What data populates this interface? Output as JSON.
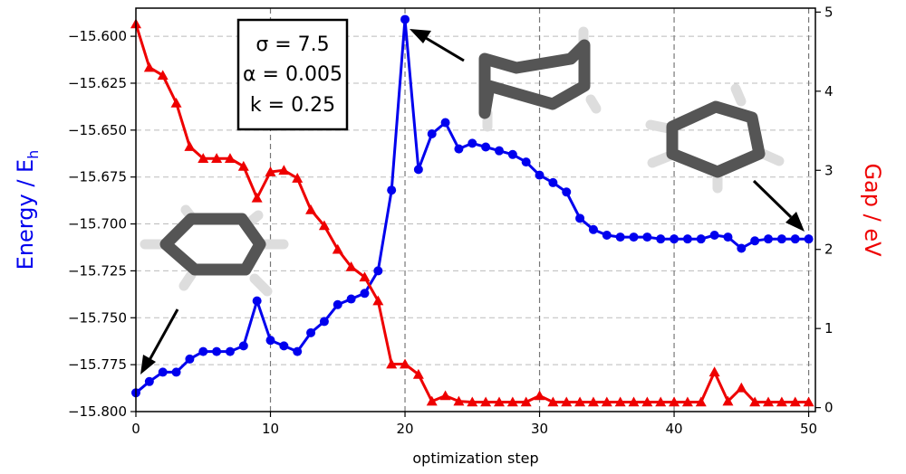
{
  "chart_data": {
    "type": "line",
    "xlabel": "optimization step",
    "ylabel_left": "Energy / E",
    "ylabel_left_sub": "h",
    "ylabel_right": "Gap / eV",
    "xlim": [
      0,
      50.5
    ],
    "ylim_left": [
      -15.8,
      -15.585
    ],
    "ylim_right": [
      -0.05,
      5.05
    ],
    "x_ticks": [
      0,
      10,
      20,
      30,
      40,
      50
    ],
    "x_tick_labels": [
      "0",
      "10",
      "20",
      "30",
      "40",
      "50"
    ],
    "y_left_ticks": [
      -15.6,
      -15.625,
      -15.65,
      -15.675,
      -15.7,
      -15.725,
      -15.75,
      -15.775,
      -15.8
    ],
    "y_left_tick_labels": [
      "−15.600",
      "−15.625",
      "−15.650",
      "−15.675",
      "−15.700",
      "−15.725",
      "−15.750",
      "−15.775",
      "−15.800"
    ],
    "y_right_ticks": [
      0,
      1,
      2,
      3,
      4,
      5
    ],
    "y_right_tick_labels": [
      "0",
      "1",
      "2",
      "3",
      "4",
      "5"
    ],
    "grid": true,
    "vertical_dashed_lines_at": [
      10,
      20,
      30,
      40,
      50
    ],
    "colors": {
      "energy": "#0000ee",
      "gap": "#ee0000",
      "grid": "#bbbbbb",
      "vline": "#777777"
    },
    "series": [
      {
        "name": "Energy",
        "axis": "left",
        "marker": "circle",
        "x": [
          0,
          1,
          2,
          3,
          4,
          5,
          6,
          7,
          8,
          9,
          10,
          11,
          12,
          13,
          14,
          15,
          16,
          17,
          18,
          19,
          20,
          21,
          22,
          23,
          24,
          25,
          26,
          27,
          28,
          29,
          30,
          31,
          32,
          33,
          34,
          35,
          36,
          37,
          38,
          39,
          40,
          41,
          42,
          43,
          44,
          45,
          46,
          47,
          48,
          49,
          50
        ],
        "values": [
          -15.79,
          -15.784,
          -15.779,
          -15.779,
          -15.772,
          -15.768,
          -15.768,
          -15.768,
          -15.765,
          -15.741,
          -15.762,
          -15.765,
          -15.768,
          -15.758,
          -15.752,
          -15.743,
          -15.74,
          -15.737,
          -15.725,
          -15.682,
          -15.591,
          -15.671,
          -15.652,
          -15.646,
          -15.66,
          -15.657,
          -15.659,
          -15.661,
          -15.663,
          -15.667,
          -15.674,
          -15.678,
          -15.683,
          -15.697,
          -15.703,
          -15.706,
          -15.707,
          -15.707,
          -15.707,
          -15.708,
          -15.708,
          -15.708,
          -15.708,
          -15.706,
          -15.707,
          -15.713,
          -15.709,
          -15.708,
          -15.708,
          -15.708,
          -15.708
        ]
      },
      {
        "name": "Gap",
        "axis": "right",
        "marker": "triangle",
        "x": [
          0,
          1,
          2,
          3,
          4,
          5,
          6,
          7,
          8,
          9,
          10,
          11,
          12,
          13,
          14,
          15,
          16,
          17,
          18,
          19,
          20,
          21,
          22,
          23,
          24,
          25,
          26,
          27,
          28,
          29,
          30,
          31,
          32,
          33,
          34,
          35,
          36,
          37,
          38,
          39,
          40,
          41,
          42,
          43,
          44,
          45,
          46,
          47,
          48,
          49,
          50
        ],
        "values": [
          4.85,
          4.3,
          4.2,
          3.85,
          3.3,
          3.15,
          3.15,
          3.15,
          3.05,
          2.65,
          2.98,
          3.0,
          2.9,
          2.5,
          2.3,
          2.0,
          1.78,
          1.65,
          1.35,
          0.55,
          0.55,
          0.42,
          0.08,
          0.15,
          0.08,
          0.07,
          0.07,
          0.07,
          0.07,
          0.07,
          0.15,
          0.07,
          0.07,
          0.07,
          0.07,
          0.07,
          0.07,
          0.07,
          0.07,
          0.07,
          0.07,
          0.07,
          0.07,
          0.45,
          0.08,
          0.25,
          0.07,
          0.07,
          0.07,
          0.07,
          0.07
        ]
      }
    ],
    "annotations": {
      "params": [
        "σ = 7.5",
        "α = 0.005",
        "k = 0.25"
      ]
    }
  }
}
